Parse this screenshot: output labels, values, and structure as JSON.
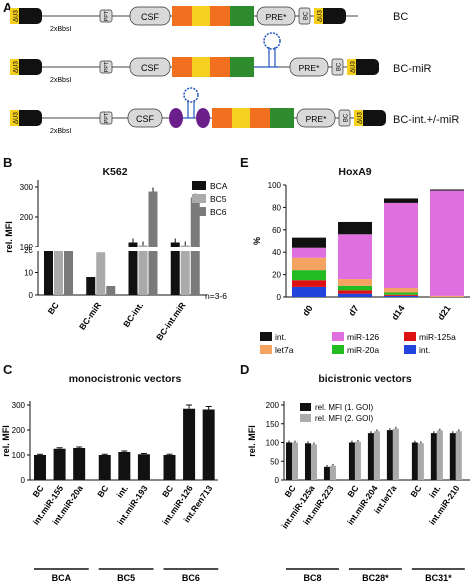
{
  "panel_labels": {
    "A": "A",
    "B": "B",
    "C": "C",
    "D": "D",
    "E": "E"
  },
  "colors": {
    "black": "#111111",
    "csf": "#d9d9d9",
    "orange": "#f07020",
    "yellow": "#f5d020",
    "green": "#2e8b2e",
    "purple": "#6a1f8a",
    "blue": "#2255bb",
    "ltr_yellow": "#f5d020",
    "bca": "#111111",
    "bc5": "#aaaaaa",
    "bc6": "#7a7a7a",
    "int": "#111111",
    "let7a": "#f4a460",
    "mir126": "#e070e0",
    "mir20a": "#22bb22",
    "mir125a": "#dd1111",
    "intblue": "#2244dd"
  },
  "panel_a": {
    "rows": [
      {
        "label": "BC",
        "ltr": "ΔU3",
        "sites": "2xBbsI",
        "ppt": "PPT",
        "csf": "CSF",
        "pre": "PRE*",
        "bc": "BC",
        "ltr_end": "ΔU3"
      },
      {
        "label": "BC-miR",
        "ltr": "ΔU3",
        "sites": "2xBbsI",
        "ppt": "PPT",
        "csf": "CSF",
        "pre": "PRE*",
        "bc": "BC",
        "ltr_end": "ΔU3"
      },
      {
        "label": "BC-int.+/-miR",
        "ltr": "ΔU3",
        "sites": "2xBbsI",
        "ppt": "PPT",
        "csf": "CSF",
        "pre": "PRE*",
        "bc": "BC",
        "ltr_end": "ΔU3"
      }
    ]
  },
  "chart_data": [
    {
      "panel": "B",
      "type": "bar",
      "title": "K562",
      "ylabel": "rel. MFI",
      "categories": [
        "BC",
        "BC-miR",
        "BC-int.",
        "BC-int.miR"
      ],
      "series": [
        {
          "name": "BCA",
          "values": [
            100,
            8,
            115,
            115
          ]
        },
        {
          "name": "BC5",
          "values": [
            100,
            19,
            105,
            105
          ]
        },
        {
          "name": "BC6",
          "values": [
            100,
            4,
            285,
            265
          ]
        }
      ],
      "yticks": [
        "0",
        "10",
        "20",
        "100",
        "200",
        "300"
      ],
      "axis_break": true,
      "note": "n=3-6"
    },
    {
      "panel": "E",
      "type": "bar",
      "title": "HoxA9",
      "ylabel": "%",
      "categories": [
        "d0",
        "d7",
        "d14",
        "d21"
      ],
      "stack_order": [
        "int.",
        "miR-125a",
        "miR-20a",
        "let7a",
        "miR-126",
        "int."
      ],
      "series": [
        {
          "name": "int.",
          "color": "intblue",
          "values": [
            9,
            3,
            1,
            0
          ]
        },
        {
          "name": "miR-125a",
          "color": "mir125a",
          "values": [
            6,
            3,
            1,
            0
          ]
        },
        {
          "name": "miR-20a",
          "color": "mir20a",
          "values": [
            9,
            4,
            2,
            0
          ]
        },
        {
          "name": "let7a",
          "color": "let7a",
          "values": [
            11,
            6,
            4,
            1
          ]
        },
        {
          "name": "miR-126",
          "color": "mir126",
          "values": [
            9,
            40,
            76,
            94
          ]
        },
        {
          "name": "int.",
          "color": "int",
          "values": [
            9,
            11,
            4,
            1
          ]
        }
      ],
      "yticks": [
        "0",
        "20",
        "40",
        "60",
        "80",
        "100"
      ],
      "ylim": [
        0,
        100
      ],
      "legend": [
        {
          "name": "int.",
          "color": "int"
        },
        {
          "name": "miR-126",
          "color": "mir126"
        },
        {
          "name": "miR-125a",
          "color": "mir125a"
        },
        {
          "name": "let7a",
          "color": "let7a"
        },
        {
          "name": "miR-20a",
          "color": "mir20a"
        },
        {
          "name": "int.",
          "color": "intblue"
        }
      ]
    },
    {
      "panel": "C",
      "type": "bar",
      "title": "monocistronic vectors",
      "ylabel": "rel. MFI",
      "categories": [
        "BC",
        "int.miR-155",
        "int.miR-20a",
        "BC",
        "int.",
        "int.miR-193",
        "BC",
        "int.miR-126",
        "int.Ren713"
      ],
      "groups": [
        "BCA",
        "BC5",
        "BC6"
      ],
      "values": [
        100,
        125,
        128,
        100,
        112,
        103,
        100,
        285,
        282
      ],
      "errors": [
        3,
        4,
        4,
        3,
        4,
        3,
        3,
        15,
        12
      ],
      "yticks": [
        "0",
        "100",
        "200",
        "300"
      ],
      "ylim": [
        0,
        300
      ]
    },
    {
      "panel": "D",
      "type": "bar",
      "title": "bicistronic vectors",
      "ylabel": "rel. MFI",
      "categories": [
        "BC",
        "int.miR-125a",
        "int.miR-223",
        "BC",
        "int.miR-204",
        "int.let7a",
        "BC",
        "int.",
        "int.miR-210"
      ],
      "groups": [
        "BC8",
        "BC28*",
        "BC31*"
      ],
      "series": [
        {
          "name": "rel. MFI (1. GOI)",
          "values": [
            100,
            98,
            35,
            100,
            125,
            133,
            100,
            125,
            125
          ]
        },
        {
          "name": "rel. MFI (2. GOI)",
          "values": [
            100,
            95,
            38,
            102,
            130,
            137,
            98,
            132,
            130
          ]
        }
      ],
      "yticks": [
        "0",
        "50",
        "100",
        "150",
        "200"
      ],
      "ylim": [
        0,
        200
      ]
    }
  ]
}
